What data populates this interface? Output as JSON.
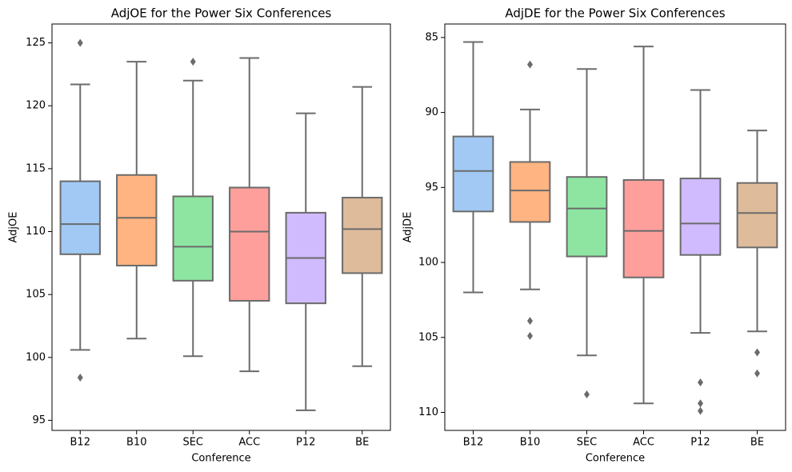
{
  "chart_data": [
    {
      "type": "box",
      "title": "AdjOE for the Power Six Conferences",
      "x_label": "Conference",
      "y_label": "AdjOE",
      "categories": [
        "B12",
        "B10",
        "SEC",
        "ACC",
        "P12",
        "BE"
      ],
      "colors": [
        "#a1c9f4",
        "#ffb482",
        "#8de5a1",
        "#ff9f9b",
        "#d0bbff",
        "#debb9b"
      ],
      "edge_color": "#6b6b6b",
      "boxes": [
        {
          "low": 100.6,
          "q1": 108.2,
          "median": 110.6,
          "q3": 114.0,
          "high": 121.7,
          "outliers": [
            125.0,
            98.4
          ]
        },
        {
          "low": 101.5,
          "q1": 107.3,
          "median": 111.1,
          "q3": 114.5,
          "high": 123.5,
          "outliers": []
        },
        {
          "low": 100.1,
          "q1": 106.1,
          "median": 108.8,
          "q3": 112.8,
          "high": 122.0,
          "outliers": [
            123.5
          ]
        },
        {
          "low": 98.9,
          "q1": 104.5,
          "median": 110.0,
          "q3": 113.5,
          "high": 123.8,
          "outliers": []
        },
        {
          "low": 95.8,
          "q1": 104.3,
          "median": 107.9,
          "q3": 111.5,
          "high": 119.4,
          "outliers": []
        },
        {
          "low": 99.3,
          "q1": 106.7,
          "median": 110.2,
          "q3": 112.7,
          "high": 121.5,
          "outliers": []
        }
      ],
      "ylim": [
        94.2,
        126.5
      ],
      "yticks": [
        95,
        100,
        105,
        110,
        115,
        120,
        125
      ],
      "grid": false
    },
    {
      "type": "box",
      "title": "AdjDE for the Power Six Conferences",
      "x_label": "Conference",
      "y_label": "AdjDE",
      "categories": [
        "B12",
        "B10",
        "SEC",
        "ACC",
        "P12",
        "BE"
      ],
      "colors": [
        "#a1c9f4",
        "#ffb482",
        "#8de5a1",
        "#ff9f9b",
        "#d0bbff",
        "#debb9b"
      ],
      "edge_color": "#6b6b6b",
      "boxes": [
        {
          "low": 85.3,
          "q1": 91.6,
          "median": 93.9,
          "q3": 96.6,
          "high": 102.0,
          "outliers": []
        },
        {
          "low": 89.8,
          "q1": 93.3,
          "median": 95.2,
          "q3": 97.3,
          "high": 101.8,
          "outliers": [
            86.8,
            103.9,
            104.9
          ]
        },
        {
          "low": 87.1,
          "q1": 94.3,
          "median": 96.4,
          "q3": 99.6,
          "high": 106.2,
          "outliers": [
            108.8
          ]
        },
        {
          "low": 85.6,
          "q1": 94.5,
          "median": 97.9,
          "q3": 101.0,
          "high": 109.4,
          "outliers": []
        },
        {
          "low": 88.5,
          "q1": 94.4,
          "median": 97.4,
          "q3": 99.5,
          "high": 104.7,
          "outliers": [
            108.0,
            109.4,
            109.9
          ]
        },
        {
          "low": 91.2,
          "q1": 94.7,
          "median": 96.7,
          "q3": 99.0,
          "high": 104.6,
          "outliers": [
            106.0,
            107.4
          ]
        }
      ],
      "ylim": [
        111.2,
        84.1
      ],
      "yticks": [
        85,
        90,
        95,
        100,
        105,
        110
      ],
      "grid": false
    }
  ]
}
